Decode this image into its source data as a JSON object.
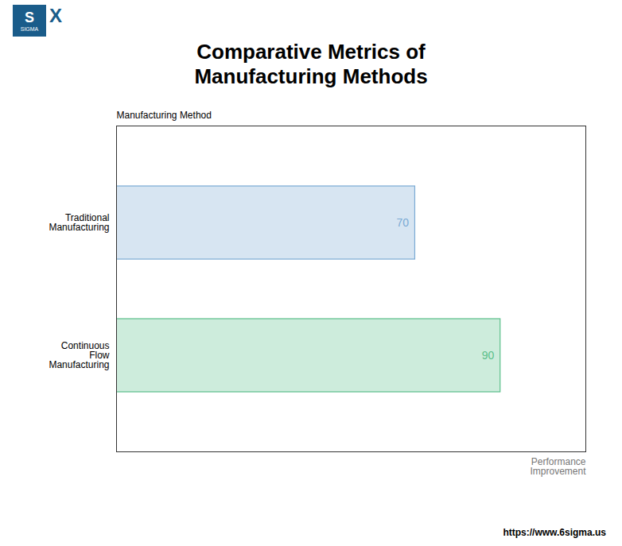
{
  "chart_data": {
    "type": "bar",
    "orientation": "horizontal",
    "title": "Comparative Metrics of\nManufacturing Methods",
    "categories": [
      "Traditional\nManufacturing",
      "Continuous\nFlow\nManufacturing"
    ],
    "values": [
      70,
      90
    ],
    "colors": [
      "#7aaad4",
      "#5bbf8a"
    ],
    "xlabel": "Performance\nImprovement",
    "ylabel": "Manufacturing Method",
    "xlim": [
      0,
      110
    ],
    "xticks": [],
    "data_labels": true,
    "tick_labels": "y",
    "grid": false,
    "annotations": [
      "S",
      "SIGMA",
      "X",
      "https://www.6sigma.us"
    ]
  }
}
